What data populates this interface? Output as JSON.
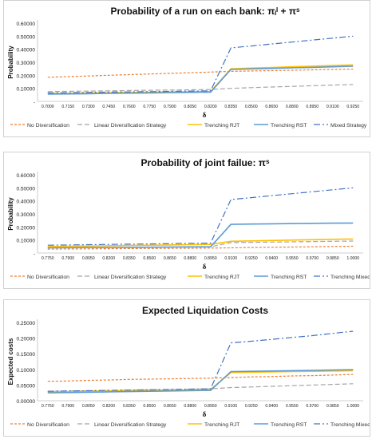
{
  "colors": {
    "No Diversification": "#ED7D31",
    "Linear Diversification Strategy": "#A5A5A5",
    "Trenching RJT": "#FFC000",
    "Trenching RST": "#5B9BD5",
    "Mixed Strategy": "#4472C4",
    "Trenching Mixed": "#4472C4"
  },
  "chart_data": [
    {
      "type": "line",
      "title": "Probability of a run on each bank: πᵢᴵ + πˢ",
      "xlabel": "δ",
      "ylabel": "Probability",
      "x": [
        "0.7000",
        "0.7150",
        "0.7300",
        "0.7450",
        "0.7600",
        "0.7750",
        "0.7900",
        "0.8050",
        "0.8200",
        "0.8350",
        "0.8500",
        "0.8650",
        "0.8800",
        "0.8950",
        "0.9100",
        "0.9250"
      ],
      "ylim": [
        0,
        0.6
      ],
      "yticks": [
        "-",
        "0.10000",
        "0.20000",
        "0.30000",
        "0.40000",
        "0.50000",
        "0.60000"
      ],
      "legend_position": "bottom",
      "series": [
        {
          "name": "No Diversification",
          "values": [
            0.185,
            0.19,
            0.195,
            0.2,
            0.205,
            0.21,
            0.215,
            0.22,
            0.225,
            0.23,
            0.233,
            0.236,
            0.239,
            0.242,
            0.245,
            0.248
          ]
        },
        {
          "name": "Linear Diversification Strategy",
          "values": [
            0.075,
            0.077,
            0.079,
            0.081,
            0.083,
            0.085,
            0.087,
            0.089,
            0.091,
            0.1,
            0.105,
            0.11,
            0.115,
            0.12,
            0.125,
            0.13
          ]
        },
        {
          "name": "Trenching RJT",
          "values": [
            0.06,
            0.062,
            0.064,
            0.066,
            0.068,
            0.07,
            0.072,
            0.074,
            0.076,
            0.25,
            0.255,
            0.26,
            0.265,
            0.27,
            0.275,
            0.28
          ]
        },
        {
          "name": "Trenching RST",
          "values": [
            0.055,
            0.057,
            0.059,
            0.061,
            0.063,
            0.065,
            0.067,
            0.069,
            0.071,
            0.245,
            0.249,
            0.253,
            0.257,
            0.261,
            0.265,
            0.27
          ]
        },
        {
          "name": "Mixed Strategy",
          "values": [
            0.065,
            0.067,
            0.069,
            0.071,
            0.073,
            0.075,
            0.077,
            0.079,
            0.081,
            0.41,
            0.425,
            0.44,
            0.455,
            0.47,
            0.485,
            0.5
          ]
        }
      ]
    },
    {
      "type": "line",
      "title": "Probability of joint failue: πˢ",
      "xlabel": "δ",
      "ylabel": "Probability",
      "x": [
        "0.7750",
        "0.7900",
        "0.8050",
        "0.8200",
        "0.8350",
        "0.8500",
        "0.8650",
        "0.8800",
        "0.8950",
        "0.9100",
        "0.9250",
        "0.9400",
        "0.9550",
        "0.9700",
        "0.9850",
        "1.0000"
      ],
      "ylim": [
        0,
        0.6
      ],
      "yticks": [
        "-",
        "0.10000",
        "0.20000",
        "0.30000",
        "0.40000",
        "0.50000",
        "0.60000"
      ],
      "legend_position": "bottom",
      "series": [
        {
          "name": "No Diversification",
          "values": [
            0.03,
            0.031,
            0.032,
            0.033,
            0.034,
            0.035,
            0.036,
            0.037,
            0.038,
            0.04,
            0.042,
            0.044,
            0.046,
            0.048,
            0.05,
            0.052
          ]
        },
        {
          "name": "Linear Diversification Strategy",
          "values": [
            0.04,
            0.041,
            0.042,
            0.043,
            0.044,
            0.045,
            0.046,
            0.047,
            0.048,
            0.08,
            0.082,
            0.084,
            0.086,
            0.088,
            0.09,
            0.092
          ]
        },
        {
          "name": "Trenching RJT",
          "values": [
            0.05,
            0.052,
            0.054,
            0.056,
            0.058,
            0.06,
            0.062,
            0.064,
            0.066,
            0.09,
            0.093,
            0.096,
            0.099,
            0.102,
            0.105,
            0.108
          ]
        },
        {
          "name": "Trenching RST",
          "values": [
            0.04,
            0.041,
            0.042,
            0.043,
            0.044,
            0.045,
            0.046,
            0.047,
            0.048,
            0.22,
            0.222,
            0.224,
            0.226,
            0.228,
            0.229,
            0.23
          ]
        },
        {
          "name": "Trenching Mixed",
          "values": [
            0.06,
            0.062,
            0.064,
            0.066,
            0.068,
            0.07,
            0.072,
            0.074,
            0.076,
            0.41,
            0.425,
            0.44,
            0.455,
            0.47,
            0.485,
            0.5
          ]
        }
      ]
    },
    {
      "type": "line",
      "title": "Expected Liquidation Costs",
      "xlabel": "δ",
      "ylabel": "Expected costs",
      "x": [
        "0.7750",
        "0.7900",
        "0.8050",
        "0.8200",
        "0.8350",
        "0.8500",
        "0.8650",
        "0.8800",
        "0.8950",
        "0.9100",
        "0.9250",
        "0.9400",
        "0.9550",
        "0.9700",
        "0.9850",
        "1.0000"
      ],
      "ylim": [
        0,
        0.25
      ],
      "yticks": [
        "0.00000",
        "0.05000",
        "0.10000",
        "0.15000",
        "0.20000",
        "0.25000"
      ],
      "legend_position": "bottom",
      "series": [
        {
          "name": "No Diversification",
          "values": [
            0.062,
            0.063,
            0.065,
            0.066,
            0.068,
            0.069,
            0.07,
            0.071,
            0.072,
            0.074,
            0.076,
            0.077,
            0.079,
            0.08,
            0.082,
            0.084
          ]
        },
        {
          "name": "Linear Diversification Strategy",
          "values": [
            0.03,
            0.031,
            0.032,
            0.033,
            0.034,
            0.035,
            0.036,
            0.037,
            0.038,
            0.042,
            0.044,
            0.046,
            0.048,
            0.05,
            0.052,
            0.054
          ]
        },
        {
          "name": "Trenching RJT",
          "values": [
            0.028,
            0.029,
            0.03,
            0.031,
            0.032,
            0.033,
            0.034,
            0.035,
            0.036,
            0.09,
            0.091,
            0.092,
            0.093,
            0.094,
            0.095,
            0.096
          ]
        },
        {
          "name": "Trenching RST",
          "values": [
            0.025,
            0.026,
            0.027,
            0.028,
            0.029,
            0.03,
            0.031,
            0.032,
            0.033,
            0.093,
            0.094,
            0.095,
            0.096,
            0.097,
            0.098,
            0.099
          ]
        },
        {
          "name": "Trenching Mixed",
          "values": [
            0.03,
            0.031,
            0.032,
            0.033,
            0.034,
            0.035,
            0.036,
            0.037,
            0.038,
            0.185,
            0.19,
            0.196,
            0.202,
            0.208,
            0.215,
            0.222
          ]
        }
      ]
    }
  ]
}
